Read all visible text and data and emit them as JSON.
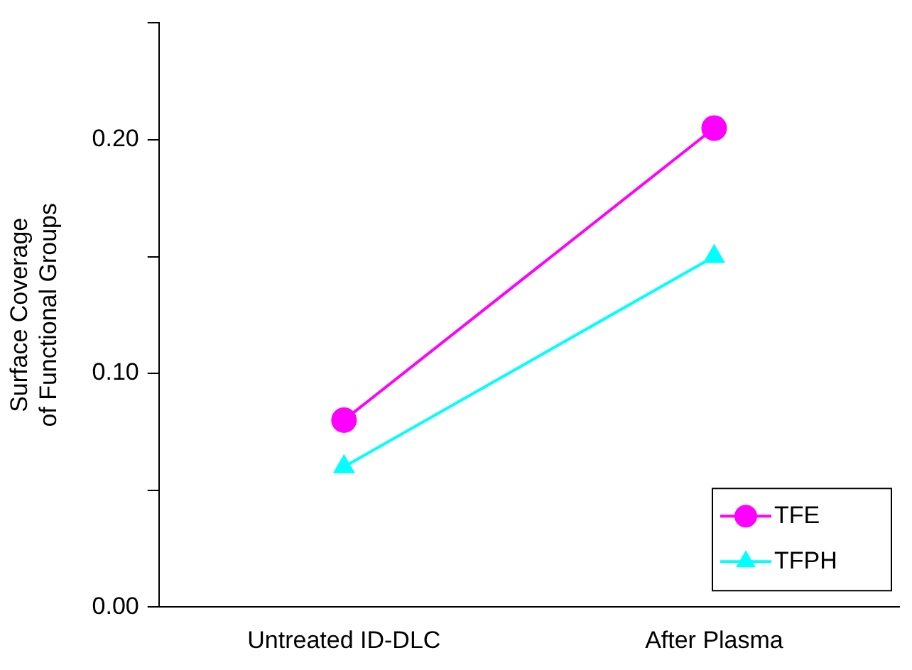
{
  "chart_data": {
    "type": "line",
    "ylabel": "Surface Coverage\nof Functional Groups",
    "categories": [
      "Untreated ID-DLC",
      "After Plasma"
    ],
    "series": [
      {
        "name": "TFE",
        "color": "#ff00ff",
        "marker": "circle",
        "values": [
          0.08,
          0.205
        ]
      },
      {
        "name": "TFPH",
        "color": "#00ffff",
        "marker": "triangle",
        "values": [
          0.06,
          0.15
        ]
      }
    ],
    "ylim": [
      0,
      0.25
    ],
    "yticks": [
      {
        "value": 0,
        "label": "0.00"
      },
      {
        "value": 0.05,
        "label": null
      },
      {
        "value": 0.1,
        "label": "0.10"
      },
      {
        "value": 0.15,
        "label": null
      },
      {
        "value": 0.2,
        "label": "0.20"
      },
      {
        "value": 0.25,
        "label": null
      }
    ],
    "grid": false,
    "legend": "bottom right",
    "line_style": "solid"
  }
}
